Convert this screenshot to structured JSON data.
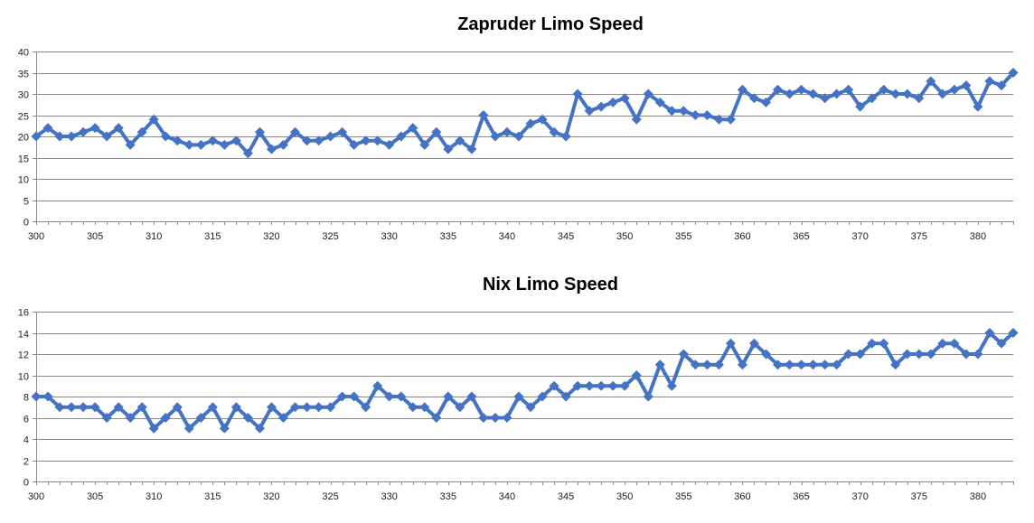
{
  "chart_data": [
    {
      "type": "line",
      "title": "Zapruder Limo Speed",
      "xlabel": "",
      "ylabel": "",
      "x_start": 300,
      "x_end": 383,
      "xticks": [
        300,
        305,
        310,
        315,
        320,
        325,
        330,
        335,
        340,
        345,
        350,
        355,
        360,
        365,
        370,
        375,
        380
      ],
      "ylim": [
        0,
        40
      ],
      "yticks": [
        0,
        5,
        10,
        15,
        20,
        25,
        30,
        35,
        40
      ],
      "grid": true,
      "legend": "none",
      "color": "#4472c4",
      "marker": "diamond",
      "series": [
        {
          "values": [
            20,
            22,
            20,
            20,
            21,
            22,
            20,
            22,
            18,
            21,
            24,
            20,
            19,
            18,
            18,
            19,
            18,
            19,
            16,
            21,
            17,
            18,
            21,
            19,
            19,
            20,
            21,
            18,
            19,
            19,
            18,
            20,
            22,
            18,
            21,
            17,
            19,
            17,
            25,
            20,
            21,
            20,
            23,
            24,
            21,
            20,
            30,
            26,
            27,
            28,
            29,
            24,
            30,
            28,
            26,
            26,
            25,
            25,
            24,
            24,
            31,
            29,
            28,
            31,
            30,
            31,
            30,
            29,
            30,
            31,
            27,
            29,
            31,
            30,
            30,
            29,
            33,
            30,
            31,
            32,
            27,
            33,
            32,
            35
          ]
        }
      ]
    },
    {
      "type": "line",
      "title": "Nix Limo Speed",
      "xlabel": "",
      "ylabel": "",
      "x_start": 300,
      "x_end": 383,
      "xticks": [
        300,
        305,
        310,
        315,
        320,
        325,
        330,
        335,
        340,
        345,
        350,
        355,
        360,
        365,
        370,
        375,
        380
      ],
      "ylim": [
        0,
        16
      ],
      "yticks": [
        0,
        2,
        4,
        6,
        8,
        10,
        12,
        14,
        16
      ],
      "grid": true,
      "legend": "none",
      "color": "#4472c4",
      "marker": "diamond",
      "series": [
        {
          "values": [
            8,
            8,
            7,
            7,
            7,
            7,
            6,
            7,
            6,
            7,
            5,
            6,
            7,
            5,
            6,
            7,
            5,
            7,
            6,
            5,
            7,
            6,
            7,
            7,
            7,
            7,
            8,
            8,
            7,
            9,
            8,
            8,
            7,
            7,
            6,
            8,
            7,
            8,
            6,
            6,
            6,
            8,
            7,
            8,
            9,
            8,
            9,
            9,
            9,
            9,
            9,
            10,
            8,
            11,
            9,
            12,
            11,
            11,
            11,
            13,
            11,
            13,
            12,
            11,
            11,
            11,
            11,
            11,
            11,
            12,
            12,
            13,
            13,
            11,
            12,
            12,
            12,
            13,
            13,
            12,
            12,
            14,
            13,
            14
          ]
        }
      ]
    }
  ]
}
